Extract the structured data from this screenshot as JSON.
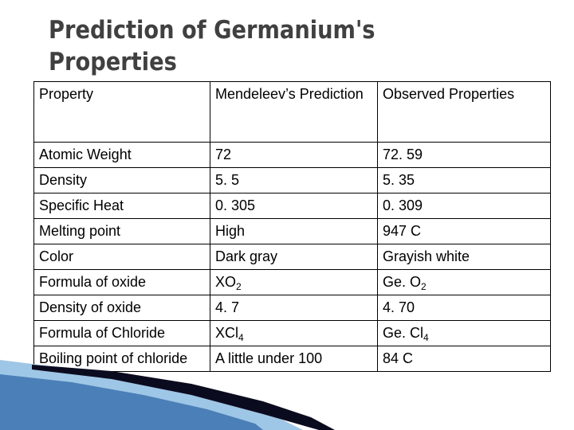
{
  "slide": {
    "title_line1": "Prediction of Germanium's",
    "title_line2": "Properties"
  },
  "table": {
    "headers": [
      "Property",
      "Mendeleev’s Prediction",
      "Observed Properties"
    ],
    "rows": [
      {
        "property": "Atomic Weight",
        "prediction": "72",
        "observed": "72. 59"
      },
      {
        "property": "Density",
        "prediction": "5. 5",
        "observed": "5. 35"
      },
      {
        "property": "Specific Heat",
        "prediction": "0. 305",
        "observed": "0. 309"
      },
      {
        "property": "Melting point",
        "prediction": "High",
        "observed": "947 C"
      },
      {
        "property": "Color",
        "prediction": "Dark gray",
        "observed": "Grayish white"
      },
      {
        "property": "Formula of oxide",
        "prediction": "XO",
        "prediction_sub": "2",
        "observed": "Ge. O",
        "observed_sub": "2"
      },
      {
        "property": "Density of oxide",
        "prediction": "4. 7",
        "observed": "4. 70"
      },
      {
        "property": "Formula of Chloride",
        "prediction": "XCl",
        "prediction_sub": "4",
        "observed": "Ge. Cl",
        "observed_sub": "4"
      },
      {
        "property": "Boiling point of chloride",
        "prediction": "A little under 100",
        "observed": "84 C"
      }
    ]
  },
  "colors": {
    "title": "#404040",
    "grid": "#000000",
    "accent_light": "#9ec6e6",
    "accent_mid": "#4a7fb8",
    "accent_dark": "#0b0b20"
  }
}
